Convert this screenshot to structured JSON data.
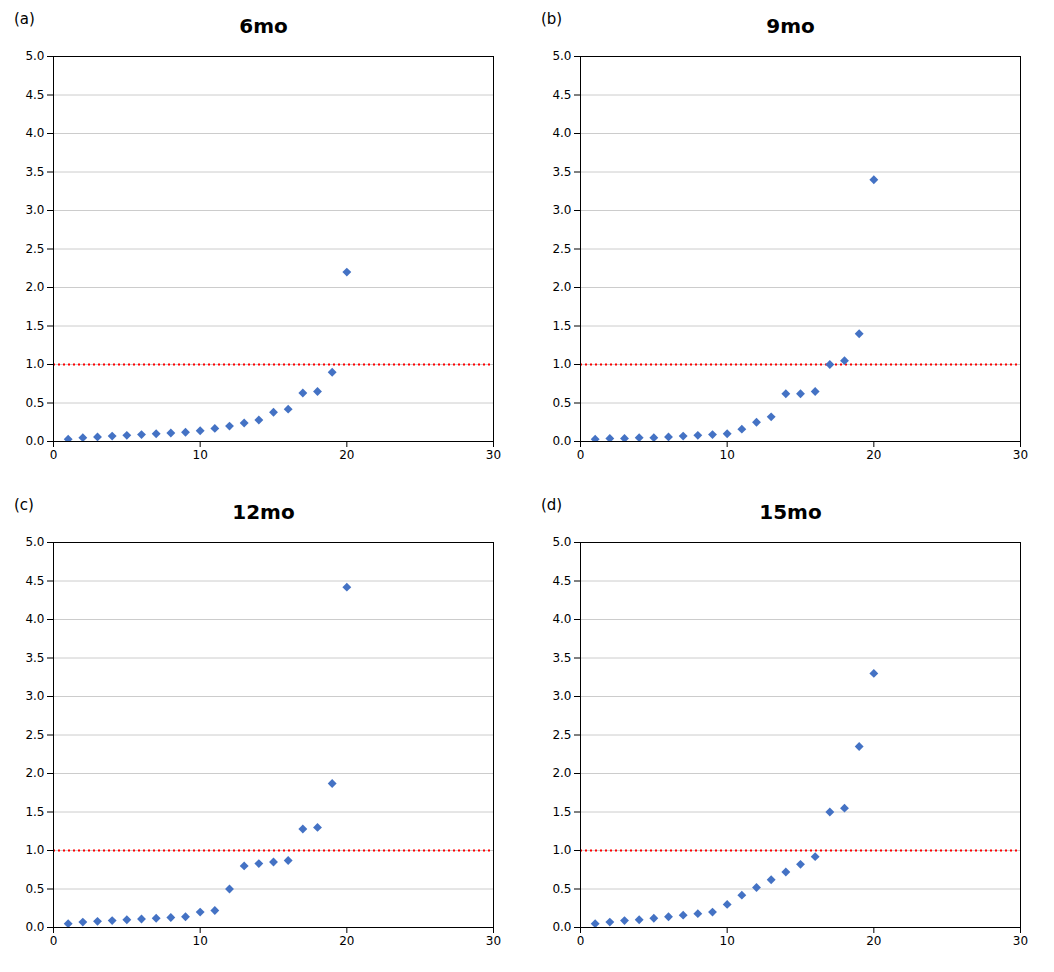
{
  "chart_data": [
    {
      "type": "scatter",
      "title": "6mo",
      "annotations": [
        "(a)"
      ],
      "x": [
        1,
        2,
        3,
        4,
        5,
        6,
        7,
        8,
        9,
        10,
        11,
        12,
        13,
        14,
        15,
        16,
        17,
        18,
        19,
        20
      ],
      "values": [
        0.03,
        0.05,
        0.06,
        0.07,
        0.08,
        0.09,
        0.1,
        0.11,
        0.12,
        0.14,
        0.17,
        0.2,
        0.24,
        0.28,
        0.38,
        0.42,
        0.63,
        0.65,
        0.9,
        2.2
      ],
      "color": "#4472C4",
      "marker": "diamond",
      "reference_line": {
        "y": 1.0,
        "color": "#FF0000",
        "line_style": "dotted"
      },
      "xlim": [
        0,
        30
      ],
      "xticks": [
        0,
        10,
        20,
        30
      ],
      "ylim": [
        0,
        5.0
      ],
      "yticks": [
        {
          "value": 0.0,
          "label": "0.0"
        },
        0.5,
        {
          "value": 1.0,
          "label": "1.0"
        },
        1.5,
        {
          "value": 2.0,
          "label": "2.0"
        },
        2.5,
        {
          "value": 3.0,
          "label": "3.0"
        },
        3.5,
        {
          "value": 4.0,
          "label": "4.0"
        },
        4.5,
        {
          "value": 5.0,
          "label": "5.0"
        }
      ],
      "grid": "y"
    },
    {
      "type": "scatter",
      "title": "9mo",
      "annotations": [
        "(b)"
      ],
      "x": [
        1,
        2,
        3,
        4,
        5,
        6,
        7,
        8,
        9,
        10,
        11,
        12,
        13,
        14,
        15,
        16,
        17,
        18,
        19,
        20
      ],
      "values": [
        0.03,
        0.04,
        0.04,
        0.05,
        0.05,
        0.06,
        0.07,
        0.08,
        0.09,
        0.1,
        0.16,
        0.25,
        0.32,
        0.62,
        0.62,
        0.65,
        1.0,
        1.05,
        1.4,
        3.4
      ],
      "color": "#4472C4",
      "marker": "diamond",
      "reference_line": {
        "y": 1.0,
        "color": "#FF0000",
        "line_style": "dotted"
      },
      "xlim": [
        0,
        30
      ],
      "xticks": [
        0,
        10,
        20,
        30
      ],
      "ylim": [
        0,
        5.0
      ],
      "yticks": [
        {
          "value": 0.0,
          "label": "0.0"
        },
        0.5,
        {
          "value": 1.0,
          "label": "1.0"
        },
        1.5,
        {
          "value": 2.0,
          "label": "2.0"
        },
        2.5,
        {
          "value": 3.0,
          "label": "3.0"
        },
        3.5,
        {
          "value": 4.0,
          "label": "4.0"
        },
        4.5,
        {
          "value": 5.0,
          "label": "5.0"
        }
      ],
      "grid": "y"
    },
    {
      "type": "scatter",
      "title": "12mo",
      "annotations": [
        "(c)"
      ],
      "x": [
        1,
        2,
        3,
        4,
        5,
        6,
        7,
        8,
        9,
        10,
        11,
        12,
        13,
        14,
        15,
        16,
        17,
        18,
        19,
        20
      ],
      "values": [
        0.05,
        0.07,
        0.08,
        0.09,
        0.1,
        0.11,
        0.12,
        0.13,
        0.14,
        0.2,
        0.22,
        0.5,
        0.8,
        0.83,
        0.85,
        0.87,
        1.28,
        1.3,
        1.87,
        4.42
      ],
      "color": "#4472C4",
      "marker": "diamond",
      "reference_line": {
        "y": 1.0,
        "color": "#FF0000",
        "line_style": "dotted"
      },
      "xlim": [
        0,
        30
      ],
      "xticks": [
        0,
        10,
        20,
        30
      ],
      "ylim": [
        0,
        5.0
      ],
      "yticks": [
        {
          "value": 0.0,
          "label": "0.0"
        },
        0.5,
        {
          "value": 1.0,
          "label": "1.0"
        },
        1.5,
        {
          "value": 2.0,
          "label": "2.0"
        },
        2.5,
        {
          "value": 3.0,
          "label": "3.0"
        },
        3.5,
        {
          "value": 4.0,
          "label": "4.0"
        },
        4.5,
        {
          "value": 5.0,
          "label": "5.0"
        }
      ],
      "grid": "y"
    },
    {
      "type": "scatter",
      "title": "15mo",
      "annotations": [
        "(d)"
      ],
      "x": [
        1,
        2,
        3,
        4,
        5,
        6,
        7,
        8,
        9,
        10,
        11,
        12,
        13,
        14,
        15,
        16,
        17,
        18,
        19,
        20
      ],
      "values": [
        0.05,
        0.07,
        0.09,
        0.1,
        0.12,
        0.14,
        0.16,
        0.18,
        0.2,
        0.3,
        0.42,
        0.52,
        0.62,
        0.72,
        0.82,
        0.92,
        1.5,
        1.55,
        2.35,
        3.3
      ],
      "color": "#4472C4",
      "marker": "diamond",
      "reference_line": {
        "y": 1.0,
        "color": "#FF0000",
        "line_style": "dotted"
      },
      "xlim": [
        0,
        30
      ],
      "xticks": [
        0,
        10,
        20,
        30
      ],
      "ylim": [
        0,
        5.0
      ],
      "yticks": [
        {
          "value": 0.0,
          "label": "0.0"
        },
        0.5,
        {
          "value": 1.0,
          "label": "1.0"
        },
        1.5,
        {
          "value": 2.0,
          "label": "2.0"
        },
        2.5,
        {
          "value": 3.0,
          "label": "3.0"
        },
        3.5,
        {
          "value": 4.0,
          "label": "4.0"
        },
        4.5,
        {
          "value": 5.0,
          "label": "5.0"
        }
      ],
      "grid": "y"
    }
  ]
}
